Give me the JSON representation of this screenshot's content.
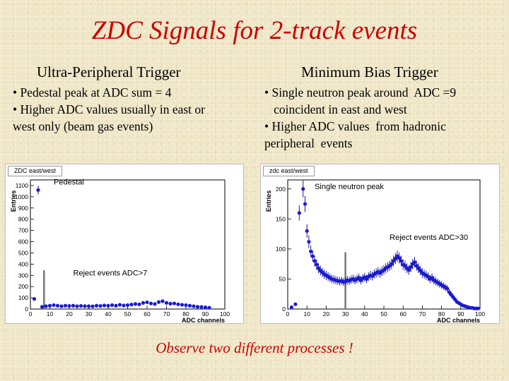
{
  "slide": {
    "title": "ZDC Signals for 2-track events",
    "footer": "Observe two different processes !"
  },
  "left": {
    "heading": "Ultra-Peripheral Trigger",
    "bullets": [
      "• Pedestal  peak at ADC sum = 4",
      "• Higher ADC values  usually in east or",
      "west only  (beam gas events)"
    ]
  },
  "right": {
    "heading": "Minimum Bias Trigger",
    "bullets": [
      "• Single neutron peak around  ADC =9",
      "   coincident in east and west",
      "• Higher ADC values  from hadronic",
      "peripheral  events"
    ]
  },
  "chart_data": [
    {
      "type": "scatter",
      "panel_title": "ZDC east/west",
      "xlabel": "ADC channels",
      "ylabel": "Entries",
      "xlim": [
        0,
        100
      ],
      "ylim": [
        0,
        1150
      ],
      "xticks": [
        0,
        10,
        20,
        30,
        40,
        50,
        60,
        70,
        80,
        90,
        100
      ],
      "yticks": [
        0,
        100,
        200,
        300,
        400,
        500,
        600,
        700,
        800,
        900,
        1000,
        1100
      ],
      "cut_x": 7,
      "x": [
        2,
        4,
        6,
        8,
        10,
        12,
        14,
        16,
        18,
        20,
        22,
        24,
        26,
        28,
        30,
        32,
        34,
        36,
        38,
        40,
        42,
        44,
        46,
        48,
        50,
        52,
        54,
        56,
        58,
        60,
        62,
        64,
        66,
        68,
        70,
        72,
        74,
        76,
        78,
        80,
        82,
        84,
        86,
        88,
        90,
        92
      ],
      "y": [
        90,
        1060,
        20,
        25,
        30,
        35,
        30,
        25,
        30,
        28,
        30,
        25,
        28,
        26,
        25,
        24,
        30,
        28,
        32,
        30,
        35,
        30,
        38,
        32,
        35,
        40,
        45,
        42,
        55,
        60,
        50,
        45,
        62,
        70,
        55,
        48,
        50,
        42,
        38,
        35,
        30,
        25,
        20,
        18,
        15,
        12
      ],
      "annotations": [
        {
          "text": "Pedestal",
          "x": 12,
          "y": 1110
        },
        {
          "text": "Reject events ADC>7",
          "x": 22,
          "y": 300
        }
      ]
    },
    {
      "type": "scatter",
      "panel_title": "zdc east/west",
      "xlabel": "ADC channels",
      "ylabel": "Entries",
      "xlim": [
        0,
        100
      ],
      "ylim": [
        0,
        215
      ],
      "xticks": [
        0,
        10,
        20,
        30,
        40,
        50,
        60,
        70,
        80,
        90,
        100
      ],
      "yticks": [
        0,
        50,
        100,
        150,
        200
      ],
      "cut_x": 30,
      "x": [
        2,
        4,
        6,
        8,
        9,
        10,
        11,
        12,
        13,
        14,
        15,
        16,
        17,
        18,
        19,
        20,
        21,
        22,
        23,
        24,
        25,
        26,
        27,
        28,
        29,
        30,
        31,
        32,
        33,
        34,
        35,
        36,
        37,
        38,
        39,
        40,
        41,
        42,
        43,
        44,
        45,
        46,
        47,
        48,
        49,
        50,
        51,
        52,
        53,
        54,
        55,
        56,
        57,
        58,
        59,
        60,
        61,
        62,
        63,
        64,
        65,
        66,
        67,
        68,
        69,
        70,
        71,
        72,
        73,
        74,
        75,
        76,
        77,
        78,
        79,
        80,
        81,
        82,
        83,
        84,
        85,
        86,
        87,
        88,
        89,
        90,
        91,
        92,
        93,
        94,
        95,
        96,
        97,
        98,
        99
      ],
      "y": [
        3,
        8,
        160,
        200,
        175,
        130,
        112,
        96,
        88,
        80,
        74,
        68,
        64,
        61,
        58,
        56,
        54,
        52,
        50,
        49,
        48,
        47,
        46,
        47,
        45,
        46,
        48,
        47,
        49,
        50,
        48,
        50,
        52,
        48,
        51,
        53,
        50,
        54,
        56,
        55,
        58,
        60,
        62,
        60,
        63,
        65,
        68,
        70,
        72,
        75,
        80,
        84,
        88,
        85,
        80,
        74,
        72,
        68,
        65,
        70,
        75,
        78,
        72,
        68,
        64,
        60,
        58,
        56,
        54,
        50,
        52,
        48,
        46,
        44,
        42,
        40,
        38,
        36,
        34,
        28,
        24,
        20,
        16,
        12,
        10,
        8,
        6,
        5,
        4,
        3,
        2,
        2,
        1,
        1,
        1
      ],
      "annotations": [
        {
          "text": "Single neutron peak",
          "x": 14,
          "y": 200
        },
        {
          "text": "Reject events ADC>30",
          "x": 53,
          "y": 115
        }
      ]
    }
  ]
}
